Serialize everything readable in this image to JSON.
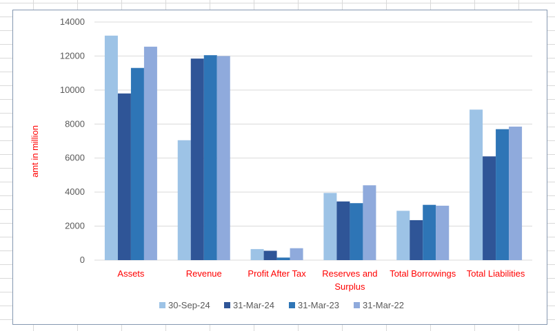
{
  "chart_data": {
    "type": "bar",
    "title": "",
    "xlabel": "",
    "ylabel": "amt in million",
    "ylim": [
      0,
      14000
    ],
    "yticks": [
      0,
      2000,
      4000,
      6000,
      8000,
      10000,
      12000,
      14000
    ],
    "grid": true,
    "legend_position": "bottom",
    "categories": [
      [
        "Assets"
      ],
      [
        "Revenue"
      ],
      [
        "Profit After Tax"
      ],
      [
        "Reserves and",
        "Surplus"
      ],
      [
        "Total Borrowings"
      ],
      [
        "Total Liabilities"
      ]
    ],
    "series": [
      {
        "name": "30-Sep-24",
        "color": "#9dc3e6",
        "values": [
          13200,
          7050,
          650,
          3950,
          2900,
          8850
        ]
      },
      {
        "name": "31-Mar-24",
        "color": "#2f5597",
        "values": [
          9800,
          11850,
          550,
          3450,
          2350,
          6100
        ]
      },
      {
        "name": "31-Mar-23",
        "color": "#2e75b6",
        "values": [
          11300,
          12050,
          150,
          3350,
          3250,
          7700
        ]
      },
      {
        "name": "31-Mar-22",
        "color": "#8faadc",
        "values": [
          12550,
          12000,
          700,
          4400,
          3200,
          7850
        ]
      }
    ],
    "colors": {
      "category_label": "#ff0000",
      "ylabel": "#ff0000",
      "tick_label": "#595959",
      "gridline": "#d9d9d9"
    }
  }
}
